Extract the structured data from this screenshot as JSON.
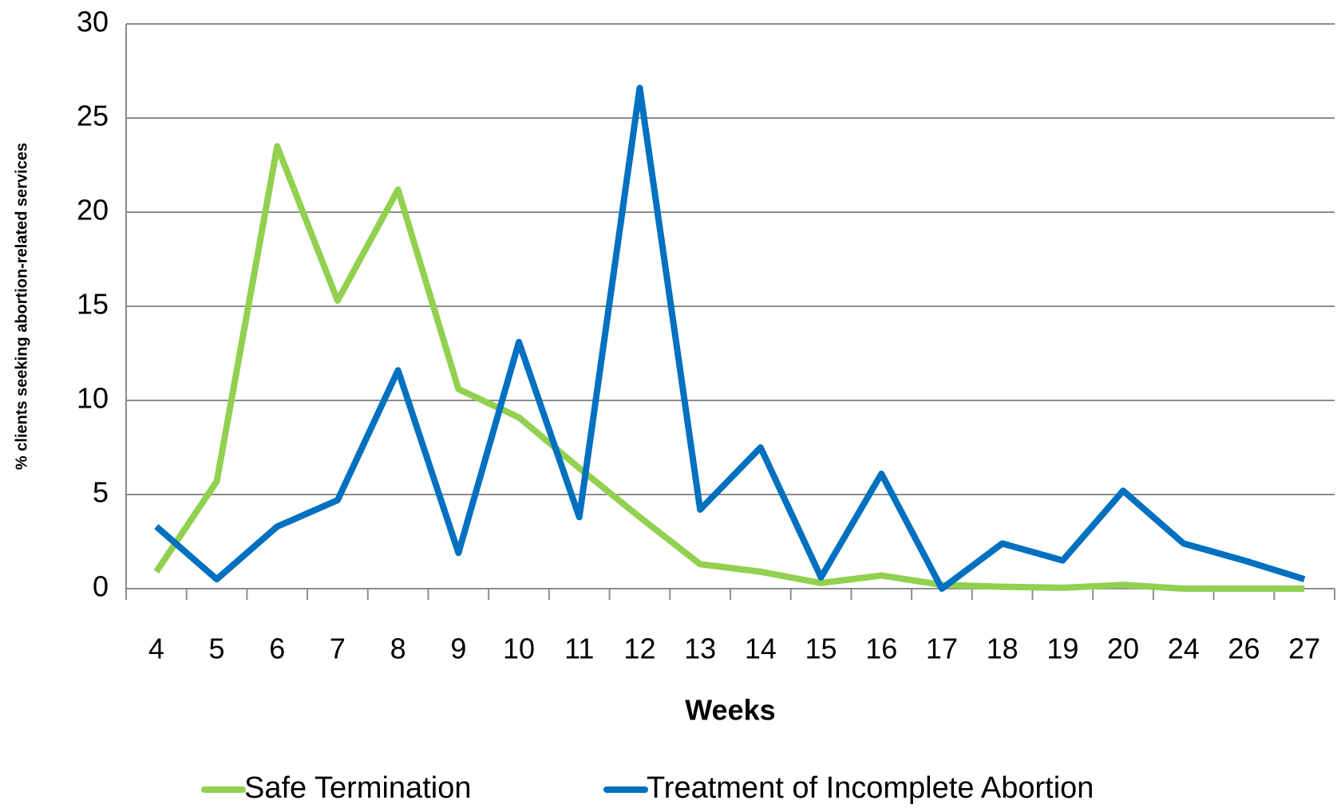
{
  "chart_data": {
    "type": "line",
    "y_axis_label": "% clients seeking abortion-related services",
    "x_axis_label": "Weeks",
    "categories": [
      "4",
      "5",
      "6",
      "7",
      "8",
      "9",
      "10",
      "11",
      "12",
      "13",
      "14",
      "15",
      "16",
      "17",
      "18",
      "19",
      "20",
      "24",
      "26",
      "27"
    ],
    "series": [
      {
        "name": "Safe Termination",
        "color": "#92d050",
        "values": [
          0.9,
          5.7,
          23.5,
          15.3,
          21.2,
          10.6,
          9.1,
          6.4,
          3.8,
          1.3,
          0.9,
          0.3,
          0.7,
          0.2,
          0.1,
          0.05,
          0.2,
          0,
          0,
          0
        ]
      },
      {
        "name": "Treatment of Incomplete Abortion",
        "color": "#0070c0",
        "values": [
          3.3,
          0.5,
          3.3,
          4.7,
          11.6,
          1.9,
          13.1,
          3.8,
          26.6,
          4.2,
          7.5,
          0.6,
          6.1,
          0,
          2.4,
          1.5,
          5.2,
          2.4,
          1.5,
          0.5
        ]
      }
    ],
    "ylim": [
      0,
      30
    ],
    "yticks": [
      0,
      5,
      10,
      15,
      20,
      25,
      30
    ],
    "grid": true
  }
}
